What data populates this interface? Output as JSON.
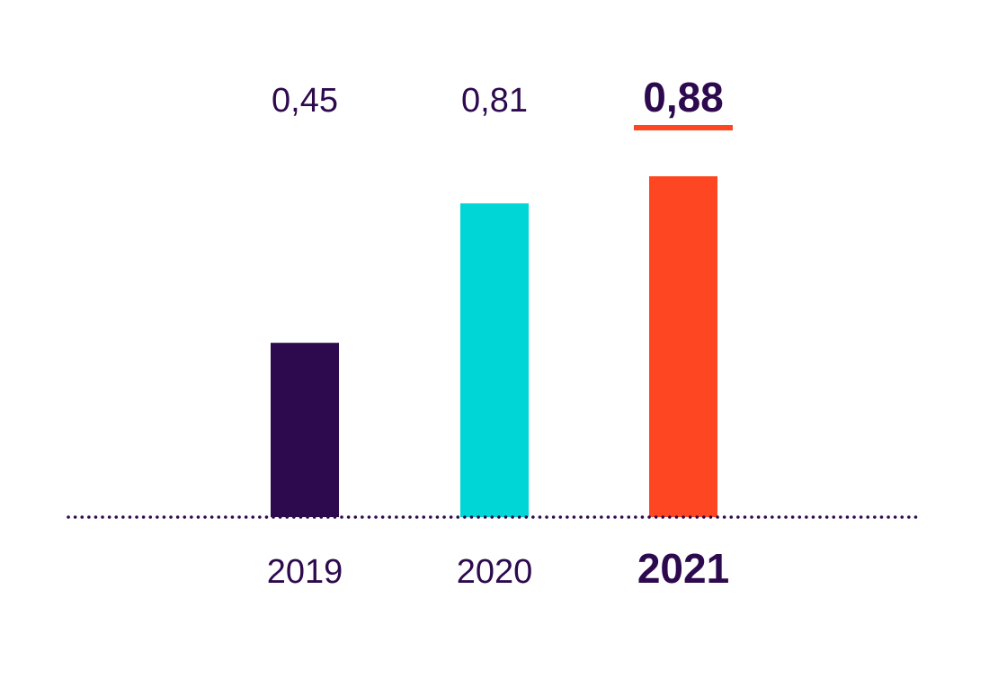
{
  "chart_data": {
    "type": "bar",
    "categories": [
      "2019",
      "2020",
      "2021"
    ],
    "values": [
      0.45,
      0.81,
      0.88
    ],
    "value_labels": [
      "0,45",
      "0,81",
      "0,88"
    ],
    "bar_colors": [
      "#2d0a4e",
      "#00d6d6",
      "#ff4622"
    ],
    "highlight_index": 2,
    "highlight_underline_color": "#ff4622",
    "text_color": "#2d0a4e",
    "baseline_style": "dotted",
    "ylim": [
      0,
      0.88
    ],
    "title": "",
    "xlabel": "",
    "ylabel": ""
  }
}
